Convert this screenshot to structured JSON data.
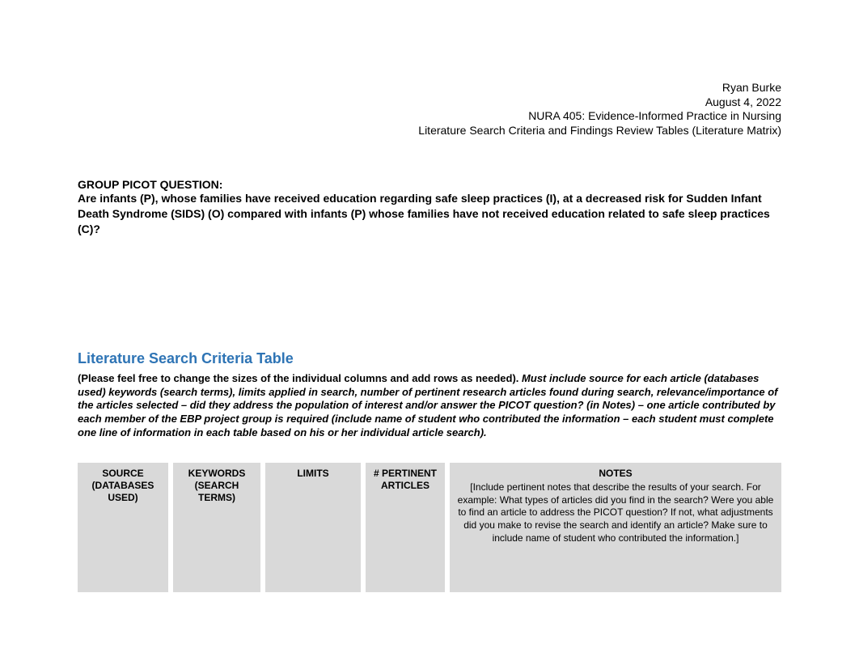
{
  "header": {
    "author": "Ryan Burke",
    "date": "August 4, 2022",
    "course": "NURA 405: Evidence-Informed Practice in Nursing",
    "subtitle": "Literature Search Criteria and Findings Review Tables (Literature Matrix)"
  },
  "picot": {
    "label": "GROUP PICOT QUESTION:",
    "question": "Are infants (P), whose families have received education regarding safe sleep practices (I), at a decreased risk for Sudden Infant Death Syndrome (SIDS) (O) compared with infants (P) whose families have not received education related to safe sleep practices (C)?"
  },
  "criteriaSection": {
    "title": "Literature Search Criteria Table",
    "instructions_plain": "(Please feel free to change the sizes of the individual columns and add rows as needed).",
    "instructions_italic": "Must include source for each article (databases used) keywords (search terms), limits applied in search, number of pertinent research articles found during search, relevance/importance of the articles selected – did they address the population of interest and/or answer the PICOT question? (in Notes) – one article contributed by each member of the EBP project group is required (include name of student who contributed the information – each student must complete one line of information in each table based on his or her individual article search)."
  },
  "table": {
    "columns": {
      "source": "SOURCE (DATABASES USED)",
      "keywords": "KEYWORDS (SEARCH TERMS)",
      "limits": "LIMITS",
      "pertinent": "# PERTINENT ARTICLES",
      "notes": "NOTES",
      "notes_desc": "[Include pertinent notes that describe the results of your search. For example: What types of articles did you find in the search? Were you able to find an article to address the PICOT question? If not, what adjustments did you make to revise the search and identify an article? Make sure to include name of student who contributed the information.]"
    },
    "header_bg": "#d9d9d9"
  },
  "colors": {
    "section_title": "#2e74b5",
    "text": "#000000",
    "background": "#ffffff"
  }
}
